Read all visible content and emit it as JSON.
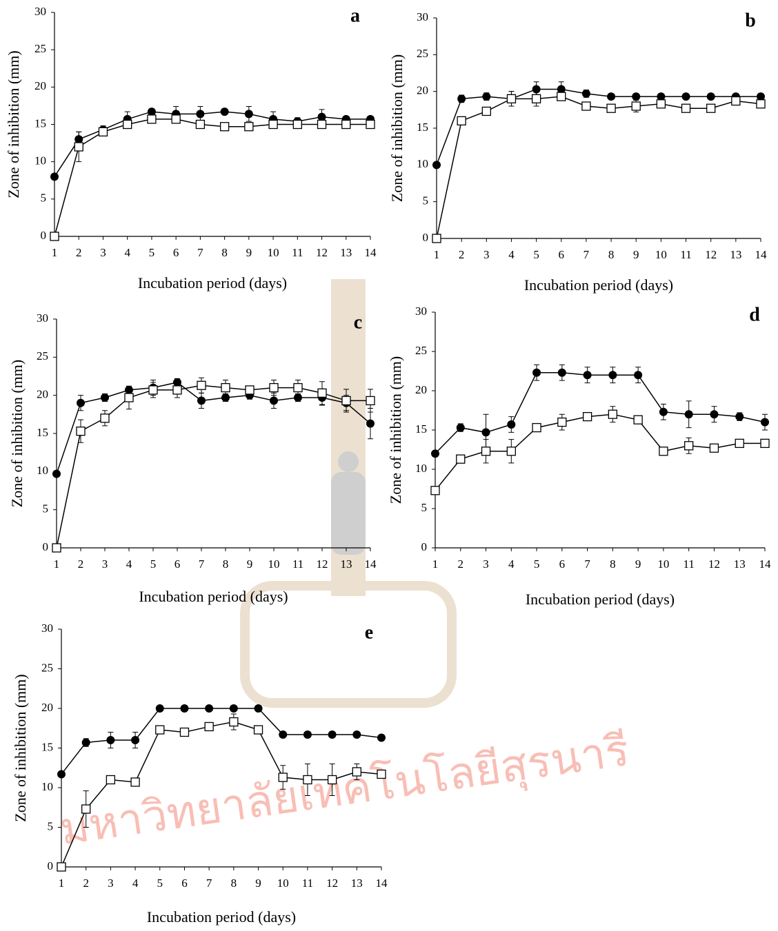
{
  "watermark": "มหาวิทยาลัยเทคโนโลยีสุรนารี",
  "chart_data": [
    {
      "type": "line",
      "label": "a",
      "xlabel": "Incubation period (days)",
      "ylabel": "Zone of inhibition  (mm)",
      "x": [
        1,
        2,
        3,
        4,
        5,
        6,
        7,
        8,
        9,
        10,
        11,
        12,
        13,
        14
      ],
      "xlim": [
        1,
        14
      ],
      "xticks": [
        1,
        2,
        3,
        4,
        5,
        6,
        7,
        8,
        9,
        10,
        11,
        12,
        13,
        14
      ],
      "ylim": [
        0,
        30
      ],
      "yticks": [
        0,
        5,
        10,
        15,
        20,
        25,
        30
      ],
      "series": [
        {
          "marker": "circle",
          "color": "#000000",
          "values": [
            8,
            13,
            14.3,
            15.7,
            16.7,
            16.4,
            16.4,
            16.7,
            16.4,
            15.7,
            15.4,
            16,
            15.7,
            15.7
          ],
          "errors": [
            0,
            1,
            0.5,
            1,
            0.3,
            1,
            1,
            0.3,
            1,
            1,
            0.5,
            1,
            0.3,
            0.3
          ]
        },
        {
          "marker": "square",
          "color": "#000000",
          "values": [
            0,
            12,
            14,
            15,
            15.7,
            15.7,
            15,
            14.7,
            14.7,
            15,
            15,
            15,
            15,
            15
          ],
          "errors": [
            0,
            2,
            0.5,
            0.3,
            0.3,
            0.3,
            0.3,
            0.3,
            0.3,
            0.3,
            0.3,
            0.3,
            0.3,
            0.3
          ]
        }
      ]
    },
    {
      "type": "line",
      "label": "b",
      "xlabel": "Incubation period (days)",
      "ylabel": "Zone of inhibition  (mm)",
      "x": [
        1,
        2,
        3,
        4,
        5,
        6,
        7,
        8,
        9,
        10,
        11,
        12,
        13,
        14
      ],
      "xlim": [
        1,
        14
      ],
      "xticks": [
        1,
        2,
        3,
        4,
        5,
        6,
        7,
        8,
        9,
        10,
        11,
        12,
        13,
        14
      ],
      "ylim": [
        0,
        30
      ],
      "yticks": [
        0,
        5,
        10,
        15,
        20,
        25,
        30
      ],
      "series": [
        {
          "marker": "circle",
          "color": "#000000",
          "values": [
            10,
            19,
            19.3,
            19,
            20.3,
            20.3,
            19.7,
            19.3,
            19.3,
            19.3,
            19.3,
            19.3,
            19.3,
            19.3
          ],
          "errors": [
            0,
            0.5,
            0.5,
            1,
            1,
            1,
            0.5,
            0.3,
            0.3,
            0.3,
            0.3,
            0.3,
            0.3,
            0.3
          ]
        },
        {
          "marker": "square",
          "color": "#000000",
          "values": [
            0,
            16,
            17.3,
            19,
            19,
            19.3,
            18,
            17.7,
            18,
            18.3,
            17.7,
            17.7,
            18.7,
            18.3
          ],
          "errors": [
            0,
            0.5,
            0.5,
            1,
            1,
            0.5,
            0.5,
            0.5,
            0.8,
            0.5,
            0.5,
            0.5,
            0.5,
            0.5
          ]
        }
      ]
    },
    {
      "type": "line",
      "label": "c",
      "xlabel": "Incubation period (days)",
      "ylabel": "Zone of inhibition  (mm)",
      "x": [
        1,
        2,
        3,
        4,
        5,
        6,
        7,
        8,
        9,
        10,
        11,
        12,
        13,
        14
      ],
      "xlim": [
        1,
        14
      ],
      "xticks": [
        1,
        2,
        3,
        4,
        5,
        6,
        7,
        8,
        9,
        10,
        11,
        12,
        13,
        14
      ],
      "ylim": [
        0,
        30
      ],
      "yticks": [
        0,
        5,
        10,
        15,
        20,
        25,
        30
      ],
      "series": [
        {
          "marker": "circle",
          "color": "#000000",
          "values": [
            9.7,
            19,
            19.7,
            20.7,
            21,
            21.7,
            19.3,
            19.7,
            20,
            19.3,
            19.7,
            19.7,
            19,
            16.3
          ],
          "errors": [
            0,
            1,
            0.5,
            0.5,
            1,
            0.5,
            1,
            0.5,
            0.5,
            1,
            0.5,
            1,
            1,
            2
          ]
        },
        {
          "marker": "square",
          "color": "#000000",
          "values": [
            0,
            15.3,
            17,
            19.7,
            20.7,
            20.7,
            21.3,
            21,
            20.7,
            21,
            21,
            20.3,
            19.3,
            19.3
          ],
          "errors": [
            0,
            1.5,
            1,
            1.5,
            1,
            1,
            1,
            1,
            0.5,
            1,
            1,
            1.5,
            1.5,
            1.5
          ]
        }
      ]
    },
    {
      "type": "line",
      "label": "d",
      "xlabel": "Incubation period (days)",
      "ylabel": "Zone of inhibition  (mm)",
      "x": [
        1,
        2,
        3,
        4,
        5,
        6,
        7,
        8,
        9,
        10,
        11,
        12,
        13,
        14
      ],
      "xlim": [
        1,
        14
      ],
      "xticks": [
        1,
        2,
        3,
        4,
        5,
        6,
        7,
        8,
        9,
        10,
        11,
        12,
        13,
        14
      ],
      "ylim": [
        0,
        30
      ],
      "yticks": [
        0,
        5,
        10,
        15,
        20,
        25,
        30
      ],
      "series": [
        {
          "marker": "circle",
          "color": "#000000",
          "values": [
            12,
            15.3,
            14.7,
            15.7,
            22.3,
            22.3,
            22,
            22,
            22,
            17.3,
            17,
            17,
            16.7,
            16
          ],
          "errors": [
            0.3,
            0.5,
            2.3,
            1,
            1,
            1,
            1,
            1,
            1,
            1,
            1.7,
            1,
            0.5,
            1
          ]
        },
        {
          "marker": "square",
          "color": "#000000",
          "values": [
            7.3,
            11.3,
            12.3,
            12.3,
            15.3,
            16,
            16.7,
            17,
            16.3,
            12.3,
            13,
            12.7,
            13.3,
            13.3
          ],
          "errors": [
            0.5,
            0.5,
            1.5,
            1.5,
            0.5,
            1,
            0.5,
            1,
            0.5,
            0.3,
            1,
            0.3,
            0.3,
            0.3
          ]
        }
      ]
    },
    {
      "type": "line",
      "label": "e",
      "xlabel": "Incubation period (days)",
      "ylabel": "Zone of inhibition  (mm)",
      "x": [
        1,
        2,
        3,
        4,
        5,
        6,
        7,
        8,
        9,
        10,
        11,
        12,
        13,
        14
      ],
      "xlim": [
        1,
        14
      ],
      "xticks": [
        1,
        2,
        3,
        4,
        5,
        6,
        7,
        8,
        9,
        10,
        11,
        12,
        13,
        14
      ],
      "ylim": [
        0,
        30
      ],
      "yticks": [
        0,
        5,
        10,
        15,
        20,
        25,
        30
      ],
      "series": [
        {
          "marker": "circle",
          "color": "#000000",
          "values": [
            11.7,
            15.7,
            16,
            16,
            20,
            20,
            20,
            20,
            20,
            16.7,
            16.7,
            16.7,
            16.7,
            16.3
          ],
          "errors": [
            0.3,
            0.5,
            1,
            1,
            0.3,
            0.3,
            0.3,
            0.3,
            0.3,
            0.3,
            0.3,
            0.3,
            0.3,
            0.3
          ]
        },
        {
          "marker": "square",
          "color": "#000000",
          "values": [
            0,
            7.3,
            11,
            10.7,
            17.3,
            17,
            17.7,
            18.3,
            17.3,
            11.3,
            11,
            11,
            12,
            11.7
          ],
          "errors": [
            0,
            2.3,
            0.3,
            0.3,
            0.3,
            0.3,
            0.5,
            1,
            0.5,
            1.5,
            2,
            2,
            1,
            0.5
          ]
        }
      ]
    }
  ]
}
